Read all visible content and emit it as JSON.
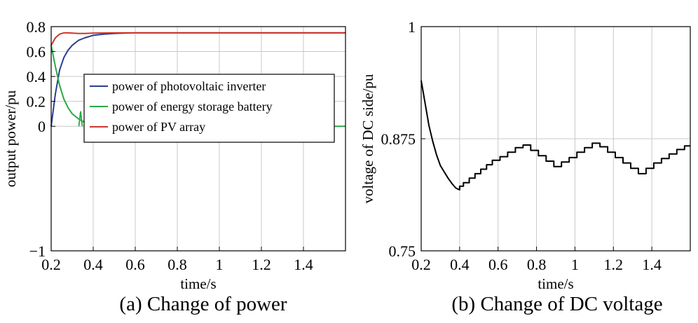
{
  "chart_data": [
    {
      "type": "line",
      "caption": "(a) Change of power",
      "xlabel": "time/s",
      "ylabel": "output power/pu",
      "xlim": [
        0.2,
        1.6
      ],
      "ylim": [
        -1,
        0.8
      ],
      "xticks": [
        0.2,
        0.4,
        0.6,
        0.8,
        1,
        1.2,
        1.4
      ],
      "xtick_labels": [
        "0.2",
        "0.4",
        "0.6",
        "0.8",
        "1",
        "1.2",
        "1.4"
      ],
      "yticks": [
        -1,
        0,
        0.2,
        0.4,
        0.6,
        0.8
      ],
      "ytick_labels": [
        "−1",
        "0",
        "0.2",
        "0.4",
        "0.6",
        "0.8"
      ],
      "grid": true,
      "legend_position": "center-right",
      "series": [
        {
          "name": "power of photovoltaic inverter",
          "color": "#2b3f8f",
          "x": [
            0.2,
            0.22,
            0.24,
            0.26,
            0.28,
            0.3,
            0.33,
            0.36,
            0.4,
            0.45,
            0.5,
            0.55,
            0.6,
            1.6
          ],
          "y": [
            0.0,
            0.26,
            0.45,
            0.55,
            0.61,
            0.65,
            0.69,
            0.71,
            0.73,
            0.74,
            0.745,
            0.748,
            0.75,
            0.75
          ]
        },
        {
          "name": "power of energy storage battery",
          "color": "#2aa84a",
          "x": [
            0.2,
            0.22,
            0.24,
            0.26,
            0.28,
            0.3,
            0.33,
            0.36,
            0.4,
            0.45,
            0.5,
            0.6,
            1.6
          ],
          "y": [
            0.65,
            0.48,
            0.33,
            0.22,
            0.15,
            0.1,
            0.06,
            0.03,
            0.0,
            0.0,
            0.0,
            0.0,
            0.0
          ],
          "spikes": [
            {
              "x": 0.34,
              "y": 0.12
            },
            {
              "x": 0.38,
              "y": 0.02
            },
            {
              "x": 0.42,
              "y": -0.06
            },
            {
              "x": 0.46,
              "y": -0.06
            },
            {
              "x": 0.5,
              "y": -0.06
            },
            {
              "x": 0.54,
              "y": -0.06
            },
            {
              "x": 0.58,
              "y": -0.06
            },
            {
              "x": 0.62,
              "y": -0.06
            },
            {
              "x": 0.66,
              "y": -0.06
            },
            {
              "x": 0.7,
              "y": -0.06
            },
            {
              "x": 0.74,
              "y": 0.05
            },
            {
              "x": 0.78,
              "y": 0.05
            },
            {
              "x": 0.82,
              "y": 0.05
            },
            {
              "x": 0.86,
              "y": 0.05
            },
            {
              "x": 0.9,
              "y": -0.06
            },
            {
              "x": 0.94,
              "y": -0.06
            },
            {
              "x": 0.98,
              "y": -0.06
            },
            {
              "x": 1.02,
              "y": -0.06
            },
            {
              "x": 1.06,
              "y": -0.06
            },
            {
              "x": 1.1,
              "y": -0.06
            },
            {
              "x": 1.14,
              "y": 0.05
            },
            {
              "x": 1.18,
              "y": 0.05
            },
            {
              "x": 1.22,
              "y": 0.05
            },
            {
              "x": 1.26,
              "y": 0.05
            },
            {
              "x": 1.3,
              "y": 0.05
            },
            {
              "x": 1.34,
              "y": -0.06
            },
            {
              "x": 1.38,
              "y": -0.06
            },
            {
              "x": 1.42,
              "y": -0.06
            },
            {
              "x": 1.46,
              "y": -0.06
            },
            {
              "x": 1.5,
              "y": -0.06
            }
          ]
        },
        {
          "name": "power of PV array",
          "color": "#d0352b",
          "x": [
            0.2,
            0.22,
            0.24,
            0.26,
            0.28,
            0.3,
            0.33,
            0.36,
            0.4,
            0.5,
            0.6,
            1.6
          ],
          "y": [
            0.65,
            0.71,
            0.74,
            0.75,
            0.75,
            0.748,
            0.745,
            0.745,
            0.748,
            0.75,
            0.75,
            0.75
          ]
        }
      ]
    },
    {
      "type": "line",
      "caption": "(b) Change of DC voltage",
      "xlabel": "time/s",
      "ylabel": "voltage of DC side/pu",
      "xlim": [
        0.2,
        1.6
      ],
      "ylim": [
        0.75,
        1
      ],
      "xticks": [
        0.2,
        0.4,
        0.6,
        0.8,
        1,
        1.2,
        1.4
      ],
      "xtick_labels": [
        "0.2",
        "0.4",
        "0.6",
        "0.8",
        "1",
        "1.2",
        "1.4"
      ],
      "yticks": [
        0.75,
        0.875,
        1
      ],
      "ytick_labels": [
        "0.75",
        "0.875",
        "1"
      ],
      "grid": true,
      "series": [
        {
          "color": "#000000",
          "x": [
            0.2,
            0.22,
            0.24,
            0.26,
            0.28,
            0.3,
            0.32,
            0.34,
            0.36,
            0.38,
            0.4,
            0.4,
            0.42,
            0.42,
            0.45,
            0.45,
            0.48,
            0.48,
            0.51,
            0.51,
            0.54,
            0.54,
            0.57,
            0.57,
            0.61,
            0.61,
            0.65,
            0.65,
            0.69,
            0.69,
            0.73,
            0.73,
            0.77,
            0.77,
            0.81,
            0.81,
            0.85,
            0.85,
            0.89,
            0.89,
            0.93,
            0.93,
            0.97,
            0.97,
            1.01,
            1.01,
            1.05,
            1.05,
            1.09,
            1.09,
            1.13,
            1.13,
            1.17,
            1.17,
            1.21,
            1.21,
            1.25,
            1.25,
            1.29,
            1.29,
            1.33,
            1.33,
            1.37,
            1.37,
            1.41,
            1.41,
            1.45,
            1.45,
            1.49,
            1.49,
            1.53,
            1.53,
            1.57,
            1.57,
            1.6
          ],
          "y": [
            0.94,
            0.915,
            0.89,
            0.872,
            0.857,
            0.845,
            0.838,
            0.831,
            0.825,
            0.82,
            0.818,
            0.822,
            0.822,
            0.826,
            0.826,
            0.831,
            0.831,
            0.836,
            0.836,
            0.841,
            0.841,
            0.846,
            0.846,
            0.851,
            0.851,
            0.855,
            0.855,
            0.86,
            0.86,
            0.865,
            0.865,
            0.868,
            0.868,
            0.862,
            0.862,
            0.856,
            0.856,
            0.85,
            0.85,
            0.844,
            0.844,
            0.849,
            0.849,
            0.854,
            0.854,
            0.86,
            0.86,
            0.865,
            0.865,
            0.87,
            0.87,
            0.866,
            0.866,
            0.86,
            0.86,
            0.854,
            0.854,
            0.848,
            0.848,
            0.842,
            0.842,
            0.836,
            0.836,
            0.842,
            0.842,
            0.848,
            0.848,
            0.853,
            0.853,
            0.858,
            0.858,
            0.863,
            0.863,
            0.867,
            0.867
          ]
        }
      ]
    }
  ]
}
